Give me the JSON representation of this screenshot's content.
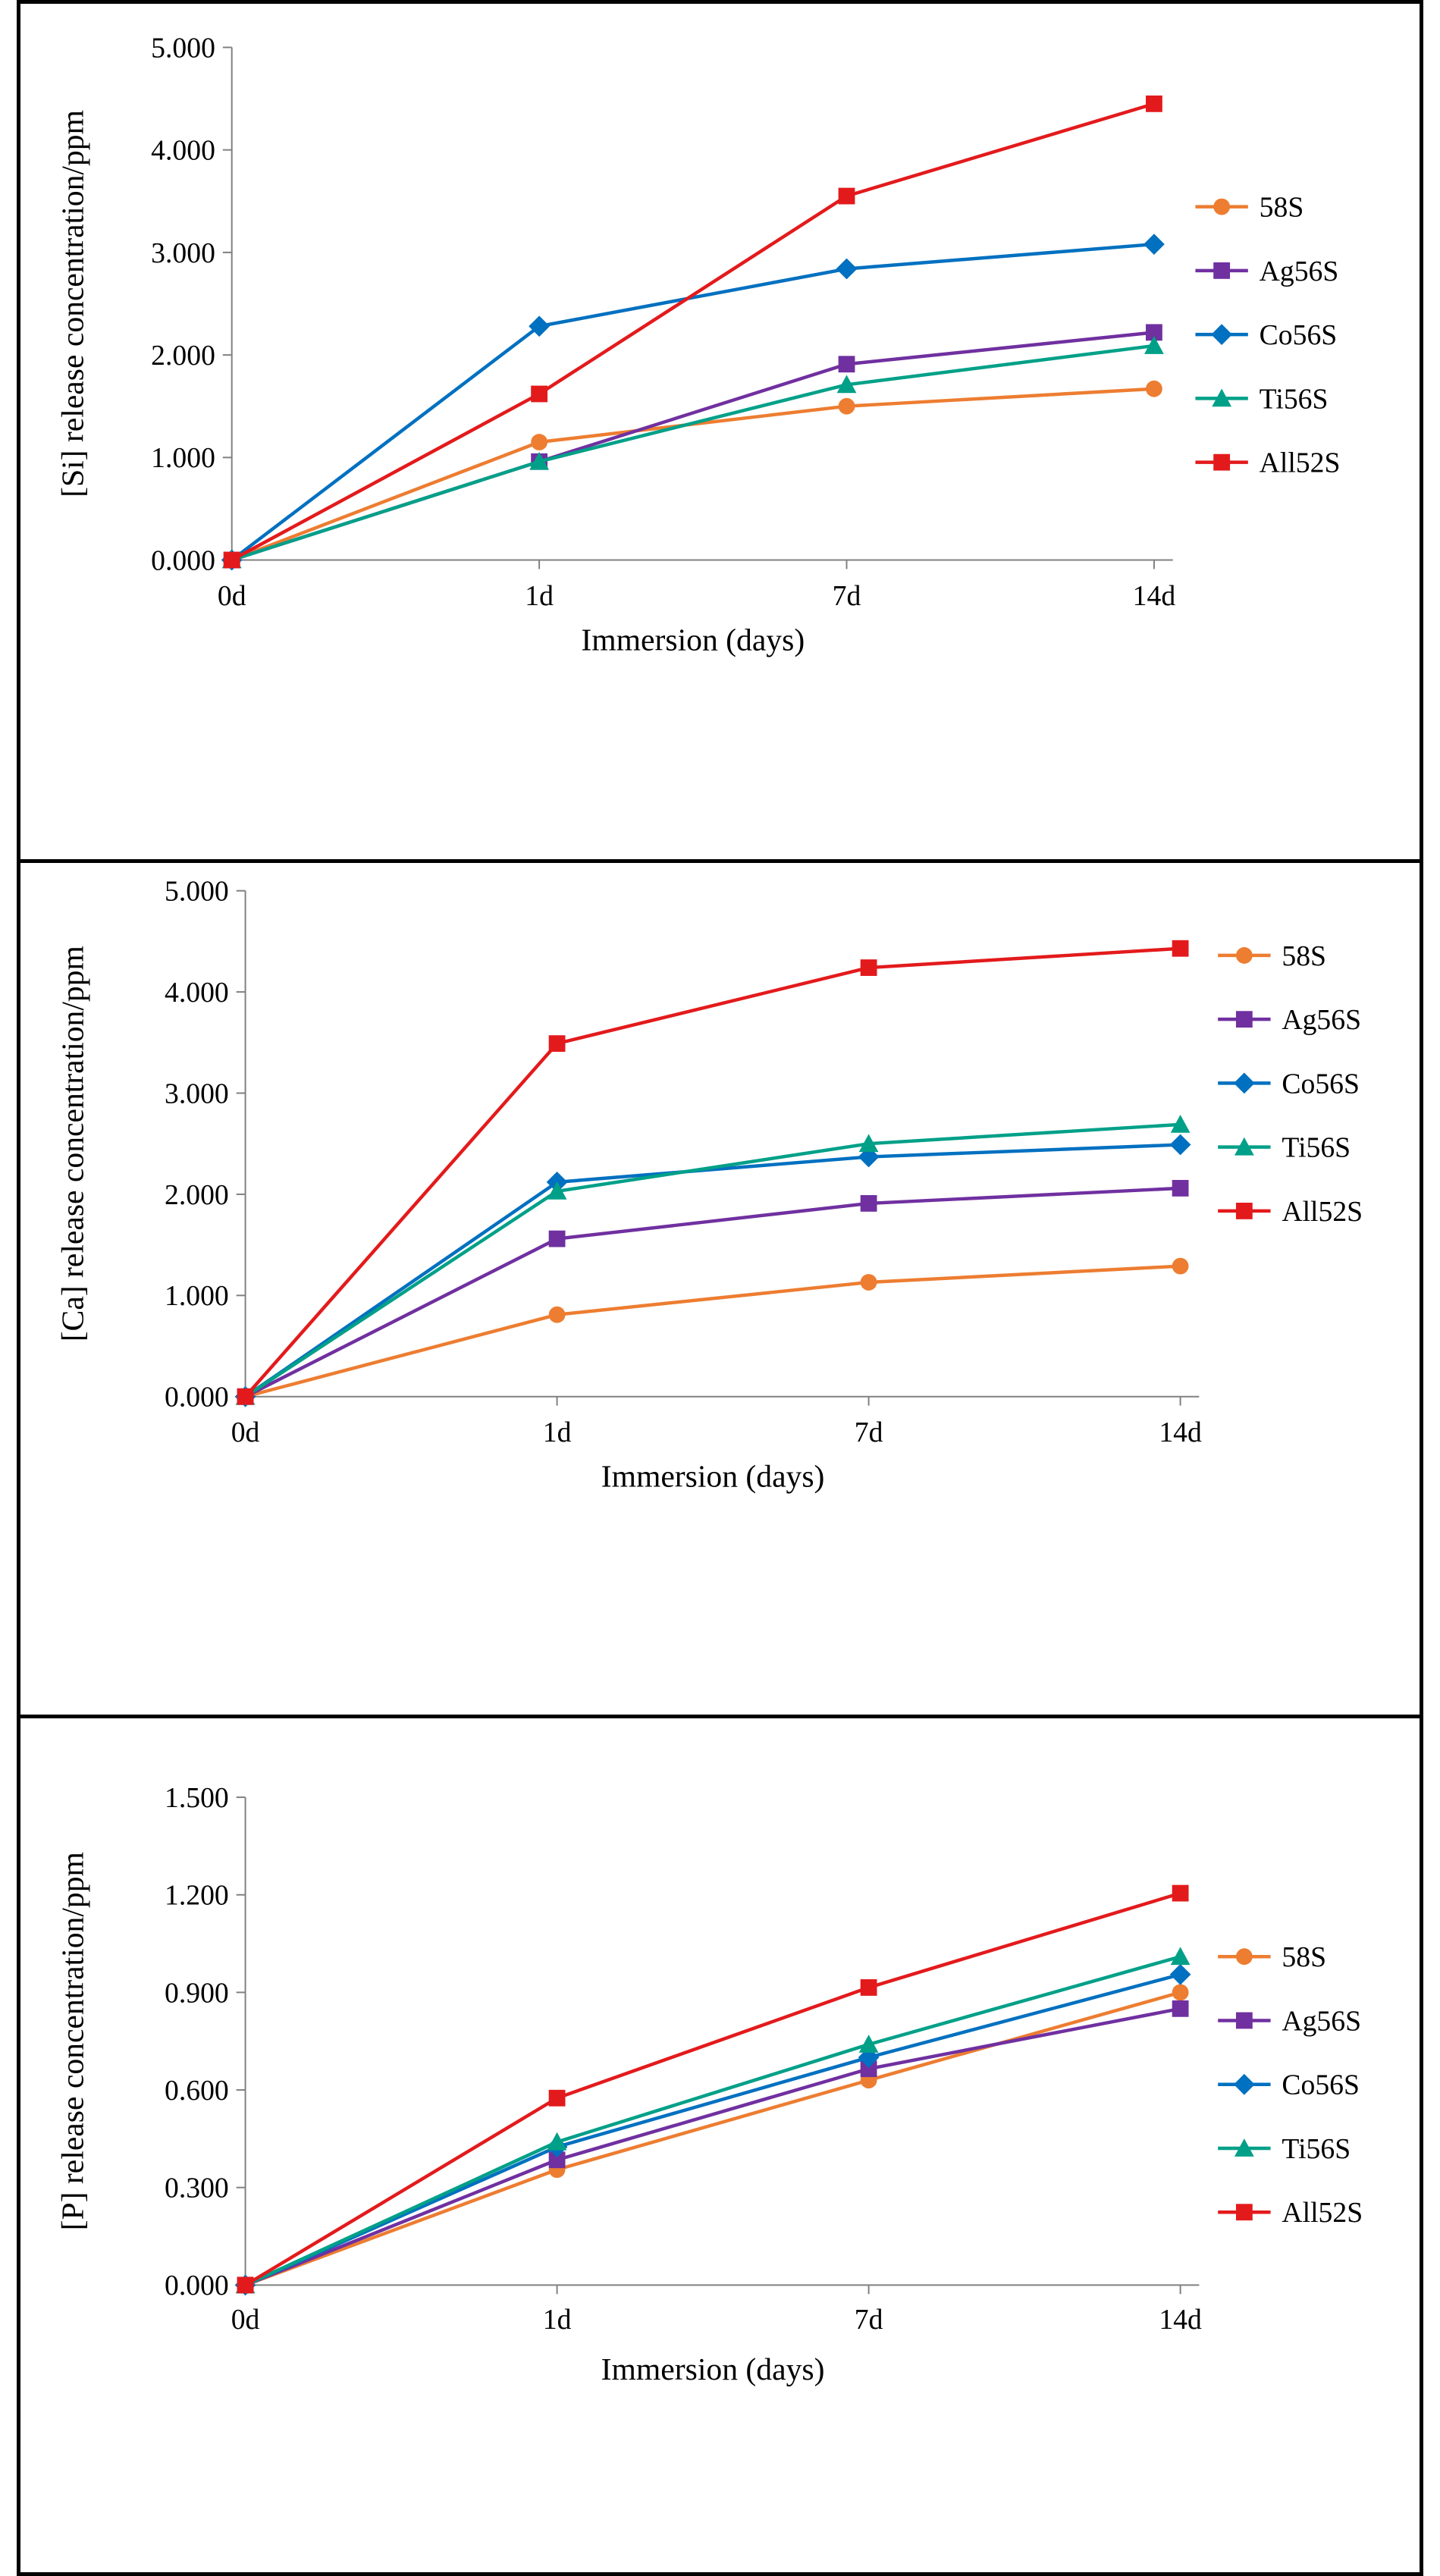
{
  "chart_data": [
    {
      "type": "line",
      "title": "",
      "xlabel": "Immersion  (days)",
      "ylabel": "[Si] release concentration/ppm",
      "categories": [
        "0d",
        "1d",
        "7d",
        "14d"
      ],
      "ylim": [
        0,
        5
      ],
      "yticks": [
        "0.000",
        "1.000",
        "2.000",
        "3.000",
        "4.000",
        "5.000"
      ],
      "legend_position": "right",
      "grid": false,
      "series": [
        {
          "name": "58S",
          "color": "#ED7D31",
          "marker": "circle",
          "values": [
            0,
            1.15,
            1.5,
            1.67
          ]
        },
        {
          "name": "Ag56S",
          "color": "#7030A0",
          "marker": "square",
          "values": [
            0,
            0.96,
            1.91,
            2.22
          ]
        },
        {
          "name": "Co56S",
          "color": "#0070C0",
          "marker": "diamond",
          "values": [
            0,
            2.28,
            2.84,
            3.08
          ]
        },
        {
          "name": "Ti56S",
          "color": "#00A088",
          "marker": "triangle",
          "values": [
            0,
            0.96,
            1.71,
            2.09
          ]
        },
        {
          "name": "All52S",
          "color": "#E31A1C",
          "marker": "square",
          "values": [
            0,
            1.62,
            3.55,
            4.45
          ]
        }
      ]
    },
    {
      "type": "line",
      "title": "",
      "xlabel": "Immersion  (days)",
      "ylabel": "[Ca] release concentration/ppm",
      "categories": [
        "0d",
        "1d",
        "7d",
        "14d"
      ],
      "ylim": [
        0,
        5
      ],
      "yticks": [
        "0.000",
        "1.000",
        "2.000",
        "3.000",
        "4.000",
        "5.000"
      ],
      "legend_position": "right",
      "grid": false,
      "series": [
        {
          "name": "58S",
          "color": "#ED7D31",
          "marker": "circle",
          "values": [
            0,
            0.81,
            1.13,
            1.29
          ]
        },
        {
          "name": "Ag56S",
          "color": "#7030A0",
          "marker": "square",
          "values": [
            0,
            1.56,
            1.91,
            2.06
          ]
        },
        {
          "name": "Co56S",
          "color": "#0070C0",
          "marker": "diamond",
          "values": [
            0,
            2.12,
            2.37,
            2.49
          ]
        },
        {
          "name": "Ti56S",
          "color": "#00A088",
          "marker": "triangle",
          "values": [
            0,
            2.03,
            2.5,
            2.69
          ]
        },
        {
          "name": "All52S",
          "color": "#E31A1C",
          "marker": "square",
          "values": [
            0,
            3.49,
            4.24,
            4.43
          ]
        }
      ]
    },
    {
      "type": "line",
      "title": "",
      "xlabel": "Immersion  (days)",
      "ylabel": "[P] release concentration/ppm",
      "categories": [
        "0d",
        "1d",
        "7d",
        "14d"
      ],
      "ylim": [
        0,
        1.5
      ],
      "yticks": [
        "0.000",
        "0.300",
        "0.600",
        "0.900",
        "1.200",
        "1.500"
      ],
      "legend_position": "right",
      "grid": false,
      "series": [
        {
          "name": "58S",
          "color": "#ED7D31",
          "marker": "circle",
          "values": [
            0,
            0.355,
            0.63,
            0.9
          ]
        },
        {
          "name": "Ag56S",
          "color": "#7030A0",
          "marker": "square",
          "values": [
            0,
            0.385,
            0.665,
            0.85
          ]
        },
        {
          "name": "Co56S",
          "color": "#0070C0",
          "marker": "diamond",
          "values": [
            0,
            0.425,
            0.7,
            0.955
          ]
        },
        {
          "name": "Ti56S",
          "color": "#00A088",
          "marker": "triangle",
          "values": [
            0,
            0.44,
            0.74,
            1.01
          ]
        },
        {
          "name": "All52S",
          "color": "#E31A1C",
          "marker": "square",
          "values": [
            0,
            0.575,
            0.915,
            1.205
          ]
        }
      ]
    }
  ]
}
